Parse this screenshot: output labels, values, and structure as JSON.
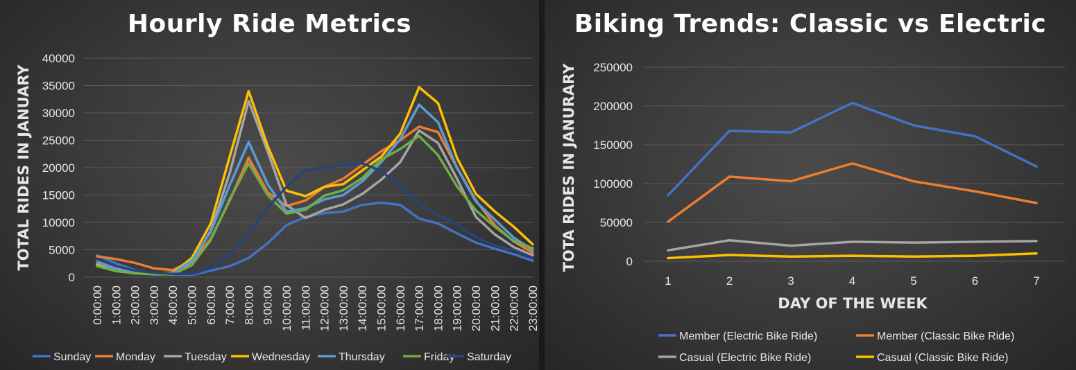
{
  "chart_data": [
    {
      "type": "line",
      "title": "Hourly Ride Metrics",
      "xlabel": "",
      "ylabel": "TOTAL RIDES IN JANUARY",
      "ylim": [
        0,
        40000
      ],
      "yticks": [
        "0",
        "5000",
        "10000",
        "15000",
        "20000",
        "25000",
        "30000",
        "35000",
        "40000"
      ],
      "ytick_values": [
        0,
        5000,
        10000,
        15000,
        20000,
        25000,
        30000,
        35000,
        40000
      ],
      "categories": [
        "0:00:00",
        "1:00:00",
        "2:00:00",
        "3:00:00",
        "4:00:00",
        "5:00:00",
        "6:00:00",
        "7:00:00",
        "8:00:00",
        "9:00:00",
        "10:00:00",
        "11:00:00",
        "12:00:00",
        "13:00:00",
        "14:00:00",
        "15:00:00",
        "16:00:00",
        "17:00:00",
        "18:00:00",
        "19:00:00",
        "20:00:00",
        "21:00:00",
        "22:00:00",
        "23:00:00"
      ],
      "grid": true,
      "legend": "bottom",
      "series": [
        {
          "name": "Sunday",
          "color": "#4472C4",
          "values": [
            4000,
            2500,
            1300,
            700,
            500,
            400,
            1200,
            2000,
            3500,
            6200,
            9500,
            11000,
            11700,
            12000,
            13200,
            13600,
            13200,
            10700,
            9800,
            8000,
            6300,
            5200,
            4200,
            3000
          ]
        },
        {
          "name": "Monday",
          "color": "#ED7D31",
          "values": [
            3800,
            3300,
            2600,
            1600,
            1300,
            3000,
            7000,
            14000,
            21800,
            15500,
            13000,
            14000,
            16500,
            18000,
            20500,
            23000,
            25000,
            27500,
            26500,
            20000,
            14000,
            9500,
            6500,
            4500
          ]
        },
        {
          "name": "Tuesday",
          "color": "#A5A5A5",
          "values": [
            3200,
            1800,
            900,
            600,
            700,
            2800,
            8500,
            19000,
            32200,
            23000,
            13200,
            10800,
            12300,
            13300,
            15200,
            17800,
            21000,
            26800,
            24500,
            18000,
            11000,
            7800,
            5500,
            4000
          ]
        },
        {
          "name": "Wednesday",
          "color": "#FFC000",
          "values": [
            2300,
            1200,
            700,
            600,
            800,
            3500,
            9800,
            22000,
            34000,
            24000,
            15800,
            14800,
            16500,
            17000,
            19500,
            22000,
            26200,
            34700,
            31800,
            21800,
            15200,
            12000,
            9200,
            6000
          ]
        },
        {
          "name": "Thursday",
          "color": "#5B9BD5",
          "values": [
            2700,
            1400,
            800,
            600,
            700,
            3000,
            8300,
            16800,
            24700,
            17000,
            12000,
            12600,
            14200,
            15000,
            17500,
            21000,
            25200,
            31500,
            28300,
            20000,
            13800,
            10500,
            7200,
            5000
          ]
        },
        {
          "name": "Friday",
          "color": "#70AD47",
          "values": [
            2000,
            1100,
            700,
            500,
            500,
            2200,
            6800,
            14200,
            20800,
            15000,
            11600,
            12300,
            14900,
            15900,
            18100,
            21500,
            23400,
            25800,
            22300,
            16600,
            12200,
            9200,
            6600,
            5300
          ]
        },
        {
          "name": "Saturday",
          "color": "#264478",
          "values": [
            3300,
            2000,
            1200,
            800,
            600,
            600,
            1600,
            4200,
            8000,
            12700,
            16500,
            19500,
            20000,
            20500,
            20800,
            19400,
            16600,
            13400,
            11300,
            9600,
            7300,
            5800,
            5000,
            3500
          ]
        }
      ]
    },
    {
      "type": "line",
      "title": "Biking Trends: Classic vs Electric",
      "xlabel": "DAY OF THE WEEK",
      "ylabel": "TOTA RIDES IN JANURARY",
      "ylim": [
        0,
        250000
      ],
      "yticks": [
        "0",
        "50000",
        "100000",
        "150000",
        "200000",
        "250000"
      ],
      "ytick_values": [
        0,
        50000,
        100000,
        150000,
        200000,
        250000
      ],
      "categories": [
        "1",
        "2",
        "3",
        "4",
        "5",
        "6",
        "7"
      ],
      "grid": true,
      "legend": "bottom",
      "series": [
        {
          "name": "Member (Electric Bike Ride)",
          "color": "#4472C4",
          "values": [
            85000,
            168000,
            166000,
            204000,
            175000,
            161000,
            122000
          ]
        },
        {
          "name": "Member (Classic Bike Ride)",
          "color": "#ED7D31",
          "values": [
            51000,
            109000,
            103000,
            126000,
            103000,
            90000,
            75000
          ]
        },
        {
          "name": "Casual (Electric Bike Ride)",
          "color": "#A5A5A5",
          "values": [
            14000,
            27000,
            20000,
            25000,
            24000,
            25000,
            26000
          ]
        },
        {
          "name": "Casual (Classic Bike Ride)",
          "color": "#FFC000",
          "values": [
            4000,
            8000,
            6000,
            7000,
            6000,
            7000,
            10000
          ]
        }
      ]
    }
  ]
}
